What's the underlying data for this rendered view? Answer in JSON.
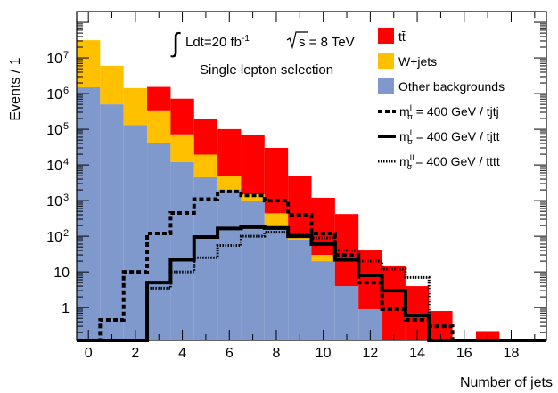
{
  "chart_data": {
    "type": "bar",
    "title": "",
    "xlabel": "Number of jets",
    "ylabel": "Events / 1",
    "xlim": [
      -0.5,
      19.5
    ],
    "ylim": [
      0.12,
      200000000
    ],
    "yscale": "log",
    "xticks": [
      0,
      2,
      4,
      6,
      8,
      10,
      12,
      14,
      16,
      18
    ],
    "yticks": [
      {
        "value": 1,
        "label": "1"
      },
      {
        "value": 10,
        "label": "10"
      },
      {
        "value": 100,
        "label": "10",
        "exp": "2"
      },
      {
        "value": 1000,
        "label": "10",
        "exp": "3"
      },
      {
        "value": 10000,
        "label": "10",
        "exp": "4"
      },
      {
        "value": 100000,
        "label": "10",
        "exp": "5"
      },
      {
        "value": 1000000,
        "label": "10",
        "exp": "6"
      },
      {
        "value": 10000000,
        "label": "10",
        "exp": "7"
      }
    ],
    "annotations": {
      "lumi_prefix": "Ldt=20 fb",
      "lumi_exp": "-1",
      "energy_prefix": "s = 8 TeV",
      "selection": "Single lepton selection"
    },
    "legend_placement": "top-right",
    "bins": [
      0,
      1,
      2,
      3,
      4,
      5,
      6,
      7,
      8,
      9,
      10,
      11,
      12,
      13,
      14,
      15,
      16,
      17,
      18,
      19
    ],
    "stacked_series": [
      {
        "name": "Other backgrounds",
        "color": "#7f99cc",
        "values": [
          1500000,
          500000,
          130000,
          40000,
          12000,
          4500,
          2000,
          1000,
          200,
          80,
          20,
          4,
          0.9,
          0,
          0,
          0,
          0,
          0,
          0,
          0
        ]
      },
      {
        "name": "W+jets",
        "color": "#ffc000",
        "values": [
          30000000,
          5500000,
          1300000,
          300000,
          60000,
          15000,
          3000,
          500,
          240,
          20,
          10,
          0,
          0,
          0,
          0,
          0,
          0,
          0,
          0,
          0
        ]
      },
      {
        "name": "tt̄",
        "legend_label": "tt̄",
        "color": "#ff0000",
        "values": [
          0,
          0,
          9000,
          1200000,
          650000,
          180000,
          96000,
          67000,
          29600,
          4800,
          1170,
          416,
          39.1,
          15.1,
          4.0,
          0.8,
          0,
          0.22,
          0,
          0
        ]
      }
    ],
    "signal_series": [
      {
        "name": "= 400 GeV / tjtj",
        "mass_label": "m",
        "sup": "I",
        "sub": "σ",
        "style": "dashed",
        "values": [
          0,
          0.45,
          10,
          120,
          450,
          1100,
          1800,
          1400,
          1000,
          400,
          120,
          30,
          5,
          0.9,
          0.45,
          0.3,
          0,
          0,
          0,
          0
        ]
      },
      {
        "name": "= 400 GeV / tjtt",
        "mass_label": "m",
        "sup": "I",
        "sub": "σ",
        "style": "solid",
        "values": [
          0,
          0,
          0,
          5,
          22,
          95,
          165,
          180,
          170,
          100,
          60,
          22,
          8,
          3,
          0.6,
          0,
          0,
          0,
          0,
          0
        ]
      },
      {
        "name": "= 400 GeV / tttt",
        "mass_label": "m",
        "sup": "II",
        "sub": "σ",
        "style": "dotted",
        "values": [
          0,
          0,
          0,
          3.5,
          10,
          25,
          55,
          100,
          130,
          110,
          90,
          40,
          20,
          12,
          7,
          0,
          0,
          0,
          0,
          0
        ]
      }
    ]
  }
}
